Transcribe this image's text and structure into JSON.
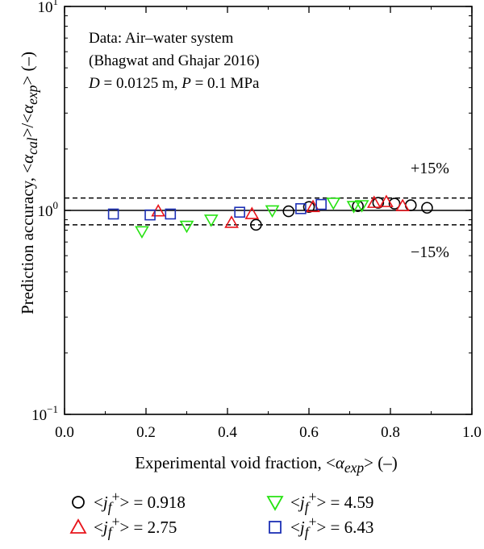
{
  "chart_data": {
    "type": "scatter",
    "xlabel_html": "Experimental void fraction, &lt;<i>α<sub>exp</sub></i>&gt; (–)",
    "ylabel_html": "Prediction accuracy, &lt;<i>α<sub>cal</sub></i>&gt;/&lt;<i>α<sub>exp</sub></i>&gt; (–)",
    "xlim": [
      0.0,
      1.0
    ],
    "ylim": [
      0.1,
      10
    ],
    "yscale": "log",
    "x_ticks": [
      "0.0",
      "0.2",
      "0.4",
      "0.6",
      "0.8",
      "1.0"
    ],
    "y_ticks": [
      {
        "base": "10",
        "exp": "−1",
        "value": 0.1
      },
      {
        "base": "10",
        "exp": "0",
        "value": 1
      },
      {
        "base": "10",
        "exp": "1",
        "value": 10
      }
    ],
    "annotation": [
      "Data: Air–water system",
      "(Bhagwat and Ghajar 2016)",
      "<i>D</i> = 0.0125 m, <i>P</i> = 0.1 MPa"
    ],
    "reference_lines": [
      {
        "y": 1.0,
        "style": "solid"
      },
      {
        "y": 1.15,
        "style": "dashed",
        "label": "+15%"
      },
      {
        "y": 0.85,
        "style": "dashed",
        "label": "−15%"
      }
    ],
    "grid": false,
    "series": [
      {
        "name": "<<i>j<sub>f</sub></i><sup>+</sup>> = 0.918",
        "marker": "circle",
        "color": "#000000",
        "x": [
          0.47,
          0.55,
          0.6,
          0.72,
          0.77,
          0.81,
          0.85,
          0.89
        ],
        "y": [
          0.85,
          0.99,
          1.04,
          1.05,
          1.09,
          1.08,
          1.06,
          1.03
        ]
      },
      {
        "name": "<<i>j<sub>f</sub></i><sup>+</sup>> = 2.75",
        "marker": "triangle-up",
        "color": "#e8141b",
        "x": [
          0.23,
          0.41,
          0.46,
          0.61,
          0.76,
          0.79,
          0.83
        ],
        "y": [
          0.99,
          0.87,
          0.96,
          1.04,
          1.09,
          1.1,
          1.05
        ]
      },
      {
        "name": "<<i>j<sub>f</sub></i><sup>+</sup>> = 4.59",
        "marker": "triangle-down",
        "color": "#27e312",
        "x": [
          0.19,
          0.3,
          0.36,
          0.51,
          0.66,
          0.71,
          0.73
        ],
        "y": [
          0.79,
          0.84,
          0.9,
          1.0,
          1.09,
          1.05,
          1.06
        ]
      },
      {
        "name": "<<i>j<sub>f</sub></i><sup>+</sup>> = 6.43",
        "marker": "square",
        "color": "#1c2fb5",
        "x": [
          0.12,
          0.21,
          0.26,
          0.43,
          0.58,
          0.63
        ],
        "y": [
          0.96,
          0.95,
          0.96,
          0.98,
          1.02,
          1.07
        ]
      }
    ]
  }
}
